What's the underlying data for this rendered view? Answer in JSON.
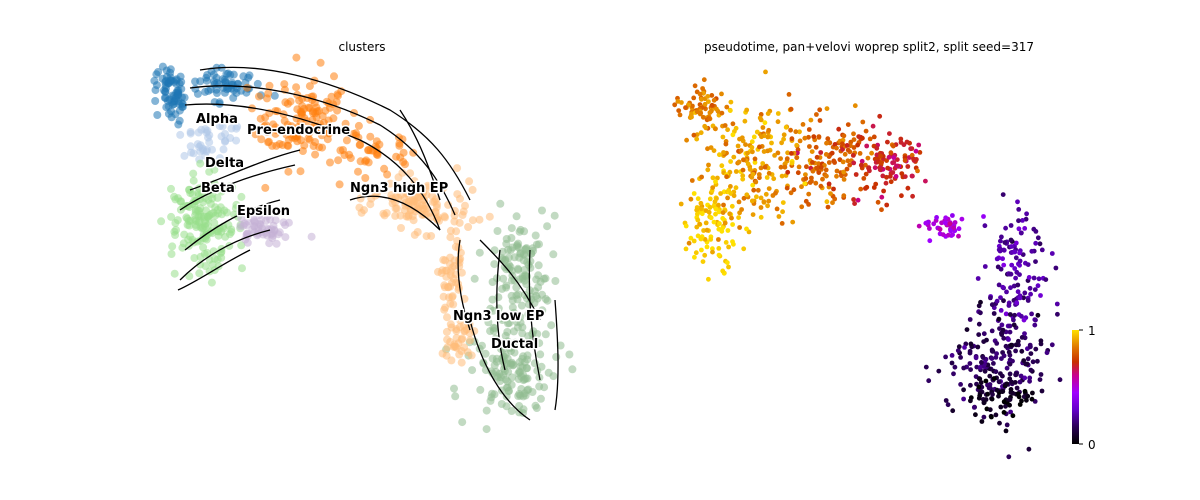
{
  "chart_data": [
    {
      "type": "scatter",
      "title": "clusters",
      "embedding": "UMAP with RNA velocity streamlines",
      "clusters": [
        {
          "name": "Alpha",
          "color": "#1f77b4",
          "label": "Alpha"
        },
        {
          "name": "Pre-endocrine",
          "color": "#ff7f0e",
          "label": "Pre-endocrine"
        },
        {
          "name": "Delta",
          "color": "#aec7e8",
          "label": "Delta"
        },
        {
          "name": "Beta",
          "color": "#98df8a",
          "label": "Beta"
        },
        {
          "name": "Ngn3 high EP",
          "color": "#ffbb78",
          "label": "Ngn3 high EP"
        },
        {
          "name": "Epsilon",
          "color": "#c5b0d5",
          "label": "Epsilon"
        },
        {
          "name": "Ngn3 low EP",
          "color": "#e377c2",
          "label": "Ngn3 low EP"
        },
        {
          "name": "Ductal",
          "color": "#8fbc8f",
          "label": "Ductal"
        }
      ],
      "streamline_color": "#000000"
    },
    {
      "type": "scatter",
      "title": "pseudotime, pan+velovi woprep split2, split seed=317",
      "colormap": "gnuplot",
      "colorbar": {
        "min": 0,
        "max": 1,
        "min_label": "0",
        "max_label": "1"
      }
    }
  ]
}
